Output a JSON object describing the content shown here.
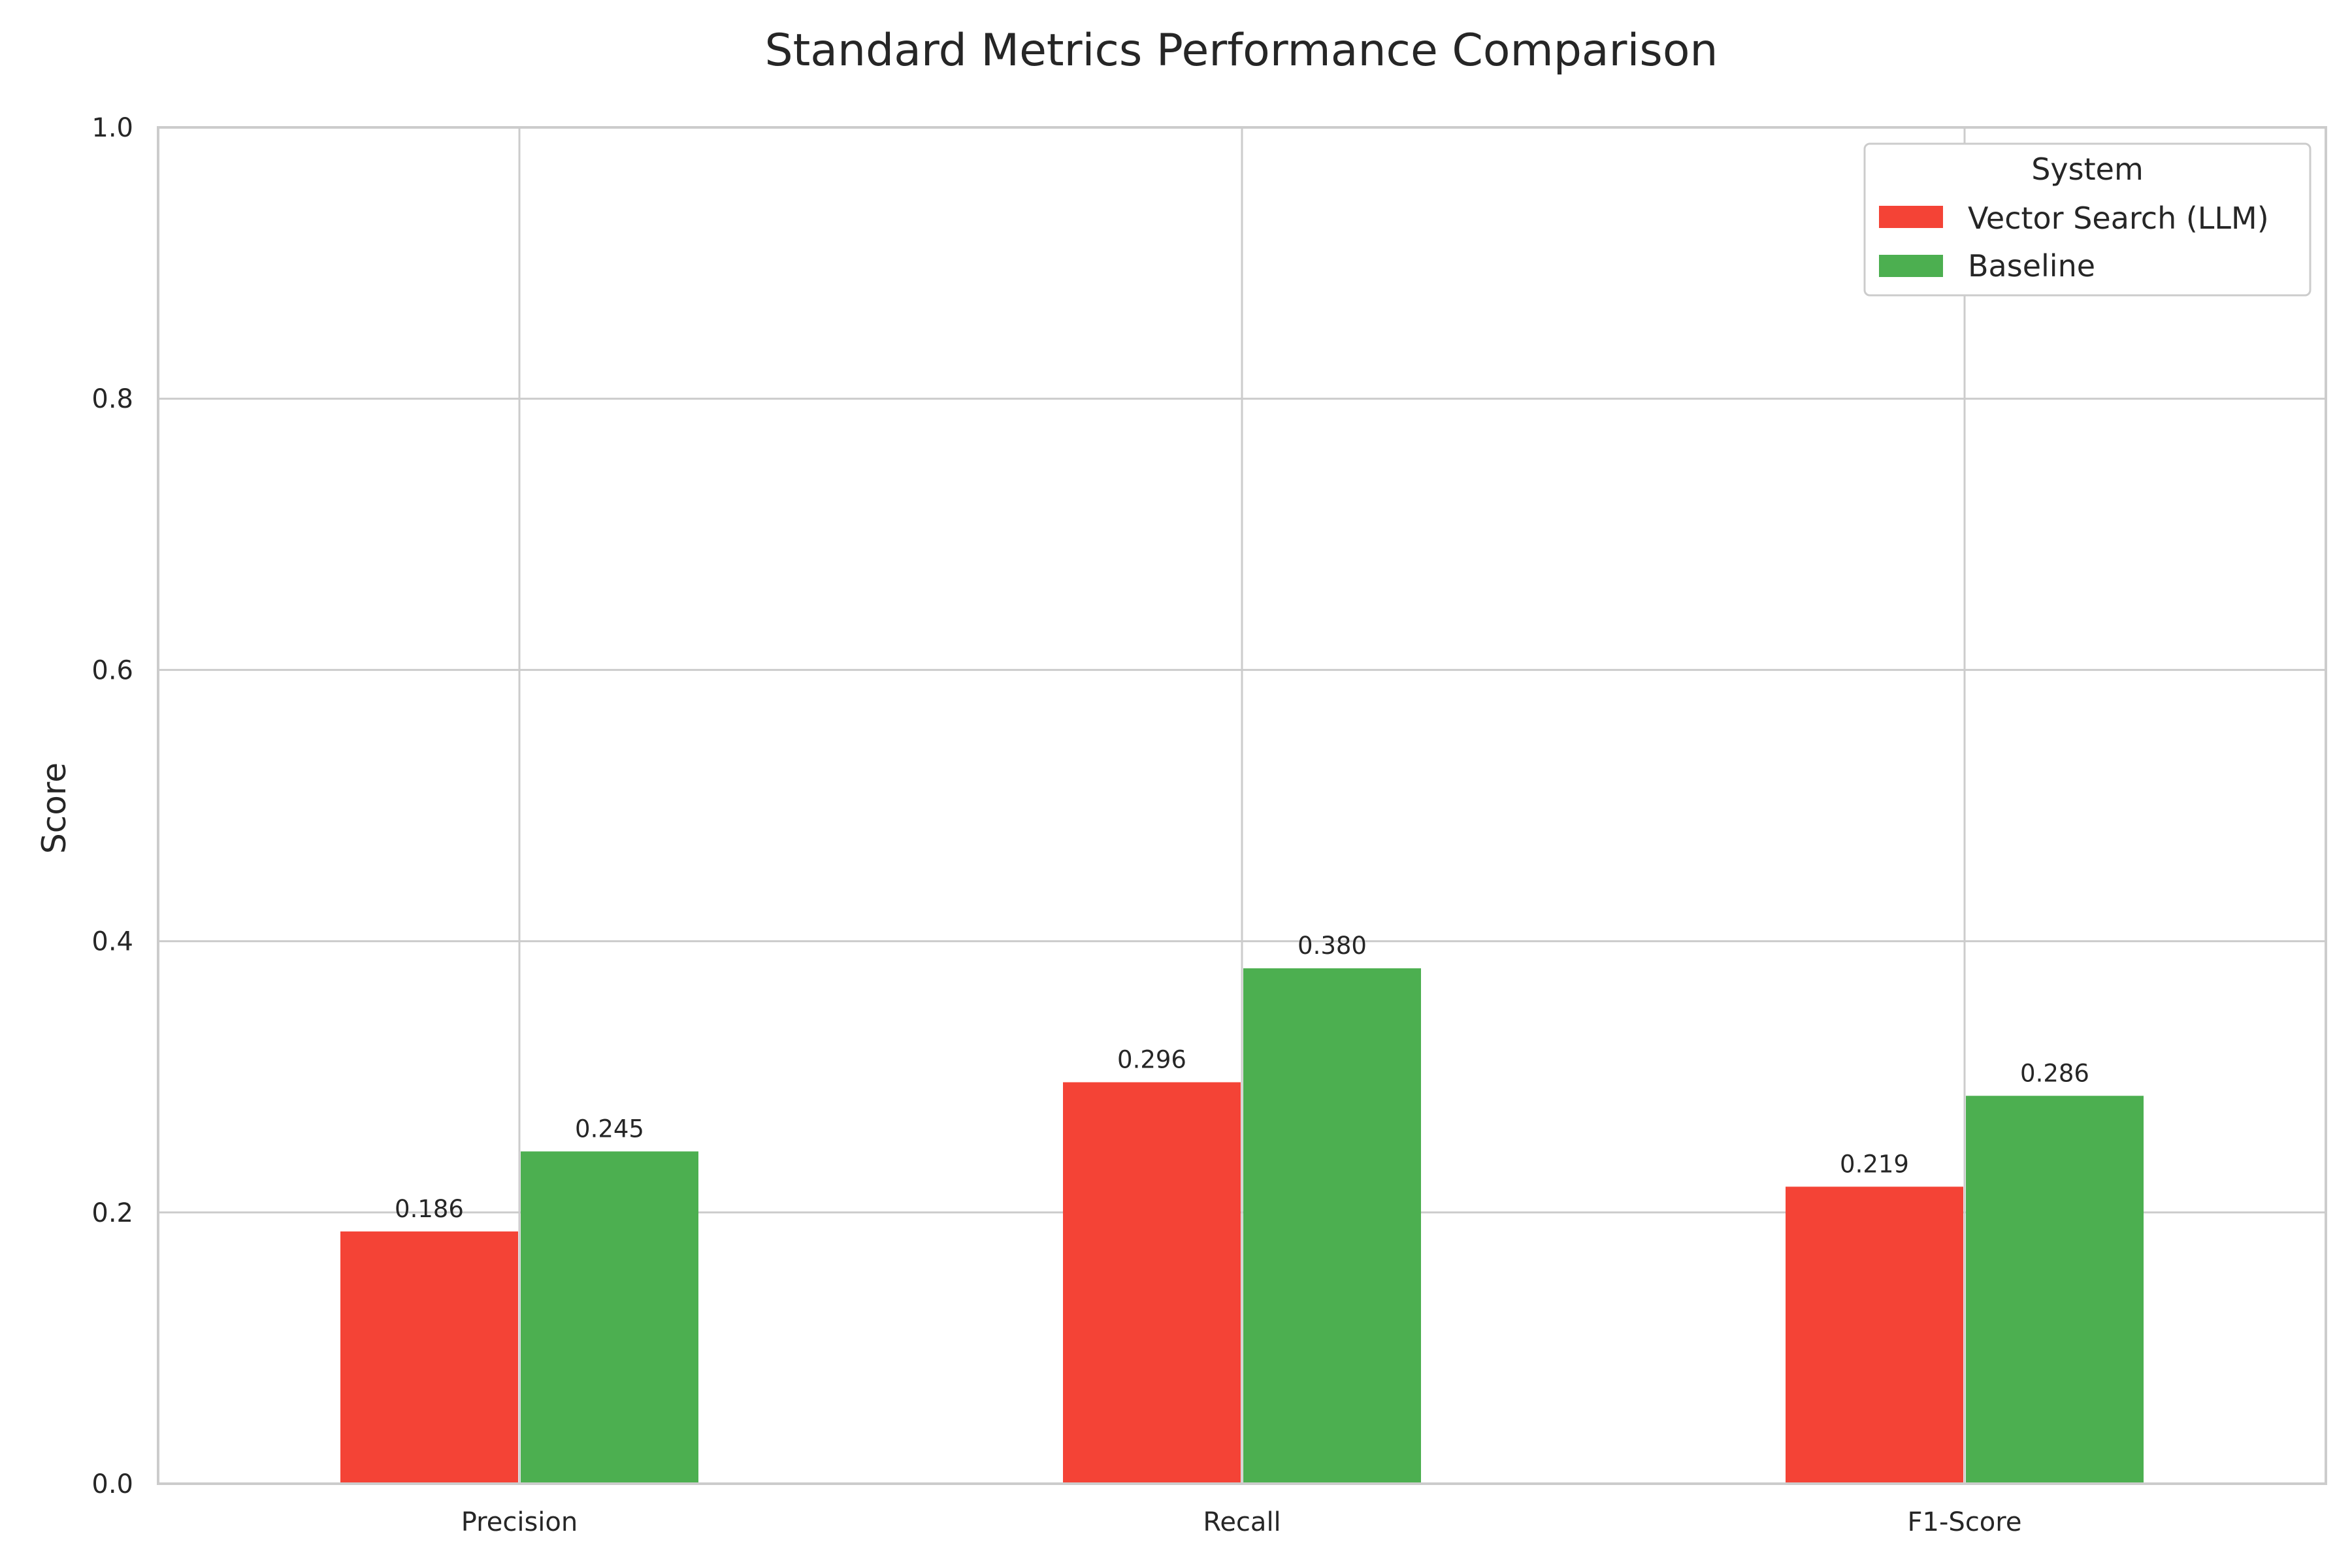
{
  "chart_data": {
    "type": "bar",
    "title": "Standard Metrics Performance Comparison",
    "xlabel": "",
    "ylabel": "Score",
    "ylim": [
      0,
      1.0
    ],
    "yticks": [
      "0.0",
      "0.2",
      "0.4",
      "0.6",
      "0.8",
      "1.0"
    ],
    "categories": [
      "Precision",
      "Recall",
      "F1-Score"
    ],
    "series": [
      {
        "name": "Vector Search (LLM)",
        "color": "#f44336",
        "values": [
          0.186,
          0.296,
          0.219
        ],
        "labels": [
          "0.186",
          "0.296",
          "0.219"
        ]
      },
      {
        "name": "Baseline",
        "color": "#4caf50",
        "values": [
          0.245,
          0.38,
          0.286
        ],
        "labels": [
          "0.245",
          "0.380",
          "0.286"
        ]
      }
    ],
    "legend": {
      "title": "System",
      "position": "top-right"
    },
    "grid": true
  }
}
